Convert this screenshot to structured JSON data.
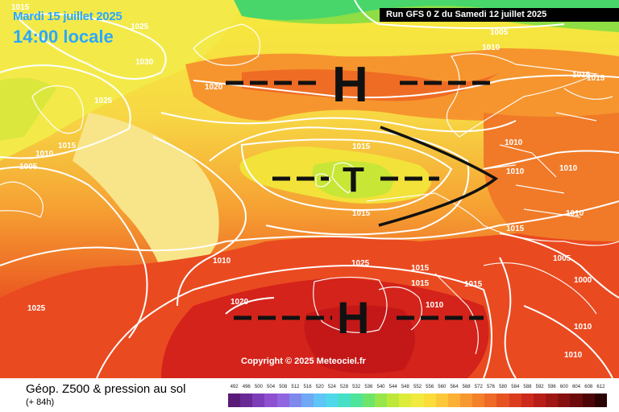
{
  "header": {
    "date": "Mardi 15 juillet 2025",
    "local_time": "14:00 locale",
    "run": "Run GFS 0 Z du Samedi 12 juillet 2025"
  },
  "map": {
    "copyright": "Copyright © 2025 Meteociel.fr",
    "pressure_labels": [
      "1015",
      "1025",
      "1030",
      "1020",
      "1025",
      "1010",
      "1015",
      "1005",
      "1005",
      "1010",
      "1015",
      "1015",
      "1015",
      "1010",
      "1010",
      "1010",
      "1015",
      "1010",
      "1025",
      "1015",
      "1015",
      "1010",
      "1020",
      "1015",
      "1025",
      "1015",
      "1010",
      "1005",
      "1000",
      "1010",
      "1010"
    ],
    "systems": [
      {
        "type": "H",
        "name": "high-north-atlantic"
      },
      {
        "type": "T",
        "name": "low-british-isles"
      },
      {
        "type": "H",
        "name": "high-iberia-mediterranean"
      }
    ]
  },
  "footer": {
    "title": "Géop. Z500 & pression au sol",
    "lead_time": "(+ 84h)"
  },
  "legend": {
    "unit_ticks": [
      "492",
      "496",
      "500",
      "504",
      "508",
      "512",
      "516",
      "520",
      "524",
      "528",
      "532",
      "536",
      "540",
      "544",
      "548",
      "552",
      "556",
      "560",
      "564",
      "568",
      "572",
      "576",
      "580",
      "584",
      "588",
      "592",
      "596",
      "600",
      "604",
      "608",
      "612"
    ],
    "colors": [
      "#5a1a78",
      "#6a2a96",
      "#7d3cb8",
      "#8e4fd0",
      "#8f66e0",
      "#7f88ec",
      "#6fa8f4",
      "#5fc4f6",
      "#4fd8ea",
      "#46e0c6",
      "#4fe49a",
      "#6fe46a",
      "#97e64a",
      "#bde83a",
      "#ddec3a",
      "#f2ea3e",
      "#fadc3a",
      "#fcc83a",
      "#fcb036",
      "#f89830",
      "#f4802a",
      "#ee6a26",
      "#e65222",
      "#dc3c1e",
      "#cc2a1a",
      "#b81e18",
      "#a01614",
      "#861010",
      "#6c0a0c",
      "#4c0608",
      "#2a0204"
    ]
  }
}
